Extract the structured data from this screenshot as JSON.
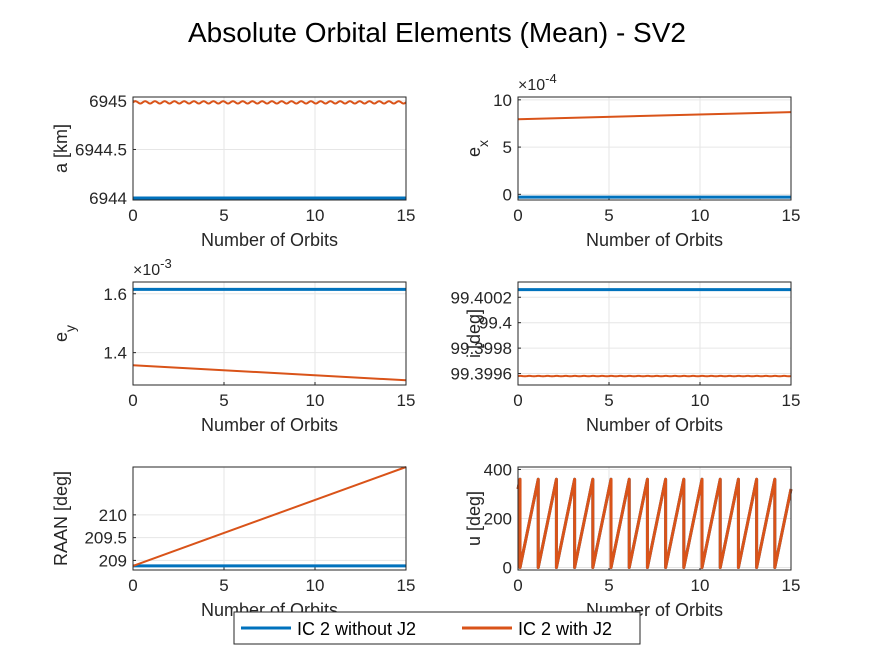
{
  "figure": {
    "title": "Absolute Orbital Elements (Mean) - SV2"
  },
  "legend": {
    "entries": [
      {
        "label": "IC 2 without J2",
        "color": "#0072BD"
      },
      {
        "label": "IC 2 with J2",
        "color": "#D95319"
      }
    ]
  },
  "chart_data": [
    {
      "type": "line",
      "xlabel": "Number of Orbits",
      "ylabel": "a [km]",
      "xlim": [
        0,
        15
      ],
      "ylim": [
        6943.98,
        6945.04
      ],
      "xticks": [
        "0",
        "5",
        "10",
        "15"
      ],
      "yticks": [
        6944,
        6944.5,
        6945
      ],
      "ytick_labels": [
        "6944",
        "6944.5",
        "6945"
      ],
      "exponent": "",
      "grid": true,
      "series": [
        {
          "name": "IC 2 without J2",
          "color": "#0072BD",
          "kind": "flat",
          "value": 6944.0
        },
        {
          "name": "IC 2 with J2",
          "color": "#D95319",
          "kind": "oscillating",
          "mean": 6944.985,
          "amplitude": 0.012,
          "cycles": 28
        }
      ]
    },
    {
      "type": "line",
      "xlabel": "Number of Orbits",
      "ylabel": "e_x",
      "xlim": [
        0,
        15
      ],
      "ylim": [
        -0.6,
        10.3
      ],
      "xticks": [
        "0",
        "5",
        "10",
        "15"
      ],
      "yticks": [
        0,
        5,
        10
      ],
      "ytick_labels": [
        "0",
        "5",
        "10"
      ],
      "exponent": "×10^-4",
      "grid": true,
      "series": [
        {
          "name": "IC 2 without J2",
          "color": "#0072BD",
          "kind": "flat",
          "value": -0.3
        },
        {
          "name": "IC 2 with J2",
          "color": "#D95319",
          "kind": "linear",
          "start": 7.95,
          "end": 8.7
        }
      ]
    },
    {
      "type": "line",
      "xlabel": "Number of Orbits",
      "ylabel": "e_y",
      "xlim": [
        0,
        15
      ],
      "ylim": [
        1.29,
        1.64
      ],
      "xticks": [
        "0",
        "5",
        "10",
        "15"
      ],
      "yticks": [
        1.4,
        1.6
      ],
      "ytick_labels": [
        "1.4",
        "1.6"
      ],
      "exponent": "×10^-3",
      "grid": true,
      "series": [
        {
          "name": "IC 2 without J2",
          "color": "#0072BD",
          "kind": "flat",
          "value": 1.615
        },
        {
          "name": "IC 2 with J2",
          "color": "#D95319",
          "kind": "linear",
          "start": 1.357,
          "end": 1.306
        }
      ]
    },
    {
      "type": "line",
      "xlabel": "Number of Orbits",
      "ylabel": "i [deg]",
      "xlim": [
        0,
        15
      ],
      "ylim": [
        99.39951,
        99.40032
      ],
      "xticks": [
        "0",
        "5",
        "10",
        "15"
      ],
      "yticks": [
        99.3996,
        99.3998,
        99.4,
        99.4002
      ],
      "ytick_labels": [
        "99.3996",
        "99.3998",
        "99.4",
        "99.4002"
      ],
      "exponent": "",
      "grid": true,
      "series": [
        {
          "name": "IC 2 without J2",
          "color": "#0072BD",
          "kind": "flat",
          "value": 99.40026
        },
        {
          "name": "IC 2 with J2",
          "color": "#D95319",
          "kind": "oscillating",
          "mean": 99.39958,
          "amplitude": 1.5e-06,
          "cycles": 30
        }
      ]
    },
    {
      "type": "line",
      "xlabel": "Number of Orbits",
      "ylabel": "RAAN [deg]",
      "xlim": [
        0,
        15
      ],
      "ylim": [
        208.79,
        211.05
      ],
      "xticks": [
        "0",
        "5",
        "10",
        "15"
      ],
      "yticks": [
        209,
        209.5,
        210
      ],
      "ytick_labels": [
        "209",
        "209.5",
        "210"
      ],
      "exponent": "",
      "grid": true,
      "series": [
        {
          "name": "IC 2 without J2",
          "color": "#0072BD",
          "kind": "flat",
          "value": 208.88
        },
        {
          "name": "IC 2 with J2",
          "color": "#D95319",
          "kind": "linear",
          "start": 208.88,
          "end": 211.05
        }
      ]
    },
    {
      "type": "line",
      "xlabel": "Number of Orbits",
      "ylabel": "u [deg]",
      "xlim": [
        0,
        15
      ],
      "ylim": [
        -10,
        410
      ],
      "xticks": [
        "0",
        "5",
        "10",
        "15"
      ],
      "yticks": [
        0,
        200,
        400
      ],
      "ytick_labels": [
        "0",
        "200",
        "400"
      ],
      "exponent": "",
      "grid": true,
      "series": [
        {
          "name": "IC 2 without J2",
          "color": "#0072BD",
          "kind": "sawtooth",
          "start_deg": 320,
          "cycles": 15
        },
        {
          "name": "IC 2 with J2",
          "color": "#D95319",
          "kind": "sawtooth",
          "start_deg": 320,
          "cycles": 15
        }
      ]
    }
  ]
}
